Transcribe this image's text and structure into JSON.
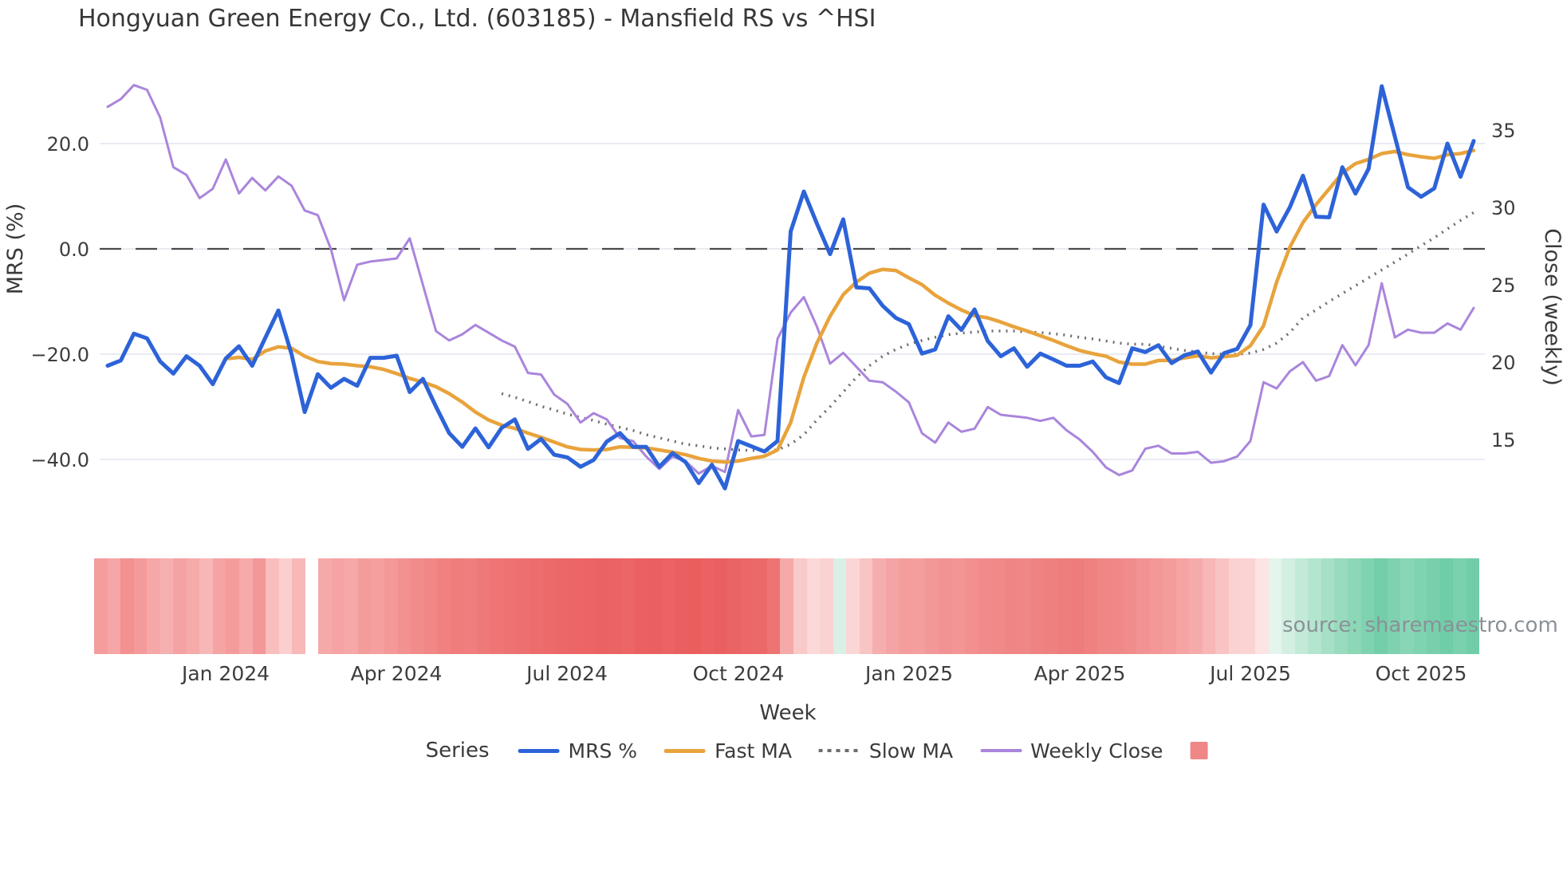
{
  "title": "Hongyuan Green Energy Co., Ltd. (603185) - Mansfield RS vs ^HSI",
  "source_note": "source: sharemaestro.com",
  "axes": {
    "left_label": "MRS (%)",
    "right_label": "Close (weekly)",
    "x_label": "Week",
    "left_ticks": [
      {
        "value": 20,
        "label": "20.0"
      },
      {
        "value": 0,
        "label": "0.0"
      },
      {
        "value": -20,
        "label": "−20.0"
      },
      {
        "value": -40,
        "label": "−40.0"
      }
    ],
    "right_ticks": [
      {
        "value": 35,
        "label": "35"
      },
      {
        "value": 30,
        "label": "30"
      },
      {
        "value": 25,
        "label": "25"
      },
      {
        "value": 20,
        "label": "20"
      },
      {
        "value": 15,
        "label": "15"
      }
    ],
    "x_ticks": [
      {
        "week": 9,
        "label": "Jan 2024"
      },
      {
        "week": 22,
        "label": "Apr 2024"
      },
      {
        "week": 35,
        "label": "Jul 2024"
      },
      {
        "week": 48,
        "label": "Oct 2024"
      },
      {
        "week": 61,
        "label": "Jan 2025"
      },
      {
        "week": 74,
        "label": "Apr 2025"
      },
      {
        "week": 87,
        "label": "Jul 2025"
      },
      {
        "week": 100,
        "label": "Oct 2025"
      }
    ]
  },
  "legend": {
    "title": "Series",
    "items": [
      {
        "label": "MRS %",
        "type": "line",
        "color": "#2d63d8"
      },
      {
        "label": "Fast MA",
        "type": "line",
        "color": "#e8a33c"
      },
      {
        "label": "Slow MA",
        "type": "dotted",
        "color": "#6d6d6d"
      },
      {
        "label": "Weekly Close",
        "type": "thin-line",
        "color": "#aa85dc"
      },
      {
        "label": "",
        "type": "square",
        "color": "#ef8787"
      }
    ]
  },
  "chart_data": {
    "type": "line",
    "title": "Hongyuan Green Energy Co., Ltd. (603185) - Mansfield RS vs ^HSI",
    "xlabel": "Week",
    "ylabel_left": "MRS (%)",
    "ylabel_right": "Close (weekly)",
    "x_unit": "week_index",
    "weeks": 105,
    "zero_line": true,
    "grid": "horizontal",
    "legend_position": "bottom",
    "series": [
      {
        "name": "MRS %",
        "axis": "left",
        "color": "#2d63d8",
        "style": "solid",
        "width": 5,
        "values": [
          -22.2,
          -21.2,
          -16.1,
          -17,
          -21.4,
          -23.7,
          -20.4,
          -22.2,
          -25.7,
          -20.8,
          -18.5,
          -22.2,
          -16.9,
          -11.7,
          -20,
          -31,
          -23.8,
          -26.4,
          -24.7,
          -26,
          -20.7,
          -20.7,
          -20.3,
          -27.2,
          -24.7,
          -30,
          -35,
          -37.6,
          -34.1,
          -37.7,
          -34,
          -32.4,
          -38,
          -36.1,
          -39.1,
          -39.6,
          -41.4,
          -40.1,
          -36.6,
          -35,
          -37.6,
          -37.6,
          -41.4,
          -38.8,
          -40.5,
          -44.5,
          -41,
          -45.5,
          -36.5,
          -37.5,
          -38.5,
          -36.5,
          3.3,
          10.9,
          4.8,
          -1,
          5.6,
          -7.3,
          -7.5,
          -10.8,
          -13.1,
          -14.3,
          -19.9,
          -19.1,
          -12.8,
          -15.4,
          -11.5,
          -17.5,
          -20.4,
          -18.9,
          -22.4,
          -19.9,
          -21,
          -22.2,
          -22.2,
          -21.4,
          -24.4,
          -25.5,
          -18.9,
          -19.6,
          -18.3,
          -21.7,
          -20.2,
          -19.5,
          -23.5,
          -19.8,
          -19,
          -14.5,
          8.4,
          3.3,
          7.9,
          13.9,
          6.1,
          6,
          15.5,
          10.5,
          15.2,
          30.9,
          21.3,
          11.7,
          9.9,
          11.5,
          20,
          13.7,
          20.5
        ]
      },
      {
        "name": "Fast MA",
        "axis": "left",
        "color": "#e8a33c",
        "style": "solid",
        "width": 4.5,
        "values": [
          null,
          null,
          null,
          null,
          null,
          null,
          null,
          null,
          null,
          -20.9,
          -20.6,
          -21,
          -19.4,
          -18.6,
          -18.9,
          -20.4,
          -21.4,
          -21.8,
          -21.9,
          -22.2,
          -22.4,
          -22.9,
          -23.7,
          -24.6,
          -25.3,
          -26.2,
          -27.5,
          -29.1,
          -31,
          -32.5,
          -33.5,
          -34.1,
          -35,
          -35.8,
          -36.7,
          -37.6,
          -38.1,
          -38.2,
          -38.1,
          -37.6,
          -37.7,
          -37.8,
          -38.2,
          -38.6,
          -39.1,
          -39.8,
          -40.3,
          -40.5,
          -40.3,
          -39.8,
          -39.4,
          -38.2,
          -33,
          -24.4,
          -17.9,
          -12.8,
          -8.7,
          -6.3,
          -4.6,
          -3.9,
          -4.1,
          -5.5,
          -6.8,
          -8.8,
          -10.3,
          -11.6,
          -12.7,
          -13.1,
          -13.9,
          -14.8,
          -15.6,
          -16.5,
          -17.4,
          -18.4,
          -19.3,
          -19.9,
          -20.4,
          -21.5,
          -21.9,
          -21.9,
          -21.2,
          -21.2,
          -20.7,
          -20.3,
          -20.7,
          -20.5,
          -20.2,
          -18.4,
          -14.6,
          -6.3,
          0.3,
          5,
          8.4,
          11.4,
          14.4,
          16.2,
          17,
          18.1,
          18.5,
          17.9,
          17.5,
          17.2,
          17.9,
          18.1,
          18.7
        ]
      },
      {
        "name": "Slow MA",
        "axis": "left",
        "color": "#6d6d6d",
        "style": "dotted",
        "width": 3.5,
        "values": [
          null,
          null,
          null,
          null,
          null,
          null,
          null,
          null,
          null,
          null,
          null,
          null,
          null,
          null,
          null,
          null,
          null,
          null,
          null,
          null,
          null,
          null,
          null,
          null,
          null,
          null,
          null,
          null,
          null,
          null,
          -27.5,
          -28.2,
          -29,
          -29.9,
          -30.6,
          -31.4,
          -32,
          -32.6,
          -33.3,
          -33.9,
          -34.5,
          -35.3,
          -35.9,
          -36.5,
          -37.1,
          -37.4,
          -37.8,
          -38,
          -38.2,
          -38.3,
          -38.3,
          -38.2,
          -37.1,
          -35.3,
          -32.5,
          -30,
          -27.2,
          -24.4,
          -22.2,
          -20.4,
          -19.1,
          -18.1,
          -17.4,
          -16.8,
          -16.3,
          -16,
          -15.8,
          -15.6,
          -15.6,
          -15.6,
          -15.8,
          -15.9,
          -16.1,
          -16.4,
          -16.8,
          -17.1,
          -17.5,
          -17.9,
          -18.1,
          -18.1,
          -18.5,
          -18.9,
          -19.3,
          -19.6,
          -19.9,
          -20,
          -20,
          -19.8,
          -19.1,
          -17.9,
          -15.9,
          -13.1,
          -11.6,
          -10,
          -8.5,
          -7,
          -5.5,
          -4,
          -2.5,
          -1,
          0.6,
          2.1,
          3.8,
          5.4,
          6.9
        ]
      },
      {
        "name": "Weekly Close",
        "axis": "right",
        "color": "#aa85dc",
        "style": "solid",
        "width": 3,
        "values": [
          36.5,
          37,
          37.9,
          37.6,
          35.8,
          32.6,
          32.1,
          30.6,
          31.2,
          33.1,
          30.9,
          31.9,
          31.1,
          32,
          31.4,
          29.8,
          29.5,
          27.3,
          24,
          26.3,
          26.5,
          26.6,
          26.7,
          28,
          25,
          22,
          21.4,
          21.8,
          22.4,
          21.9,
          21.4,
          21,
          19.3,
          19.2,
          17.9,
          17.3,
          16.1,
          16.7,
          16.3,
          15.1,
          14.9,
          13.9,
          13.1,
          13.9,
          13.6,
          12.8,
          13.3,
          12.9,
          16.9,
          15.2,
          15.3,
          21.5,
          23.2,
          24.2,
          22.3,
          19.9,
          20.6,
          19.7,
          18.8,
          18.7,
          18.1,
          17.4,
          15.4,
          14.8,
          16.1,
          15.5,
          15.7,
          17.1,
          16.6,
          16.5,
          16.4,
          16.2,
          16.4,
          15.6,
          15,
          14.2,
          13.2,
          12.7,
          13,
          14.4,
          14.6,
          14.1,
          14.1,
          14.2,
          13.5,
          13.6,
          13.9,
          14.9,
          18.7,
          18.3,
          19.4,
          20,
          18.8,
          19.1,
          21.1,
          19.8,
          21.1,
          25.1,
          21.6,
          22.1,
          21.9,
          21.9,
          22.5,
          22.1,
          23.5
        ]
      }
    ],
    "heatmap_strip": {
      "description": "weekly relative-strength heat cells below chart",
      "colors": [
        "#f59c9d",
        "#f6a6a7",
        "#f29190",
        "#f49a9a",
        "#f6a7a7",
        "#f7b0b0",
        "#f5a2a2",
        "#f6abab",
        "#f8b7b7",
        "#f5a3a3",
        "#f49c9c",
        "#f6aaaa",
        "#f39799",
        "#f9bebe",
        "#fbcfcf",
        "#f8b8b8",
        "#ffffff",
        "#f6a9a9",
        "#f5a3a3",
        "#f6a8a8",
        "#f49c9c",
        "#f5a0a0",
        "#f49898",
        "#f39191",
        "#f28b8b",
        "#f28787",
        "#f18181",
        "#f07c7c",
        "#f07e7e",
        "#ef7878",
        "#ef7575",
        "#ee7272",
        "#ee6f6f",
        "#ed6c6c",
        "#ed6a6a",
        "#ec6868",
        "#ec6666",
        "#ec6464",
        "#eb6262",
        "#eb6464",
        "#ec6666",
        "#eb6161",
        "#ea5f5f",
        "#eb6363",
        "#ea6060",
        "#ea5e5e",
        "#eb6262",
        "#ea5f5f",
        "#eb6464",
        "#ec6767",
        "#ec6969",
        "#ee7373",
        "#f5a9a9",
        "#f9caca",
        "#fbd9d9",
        "#fad2d2",
        "#d8f0e6",
        "#fbd6d6",
        "#f8c4c4",
        "#f5aeae",
        "#f4a4a4",
        "#f39d9d",
        "#f49f9f",
        "#f39898",
        "#f29292",
        "#f39595",
        "#f29090",
        "#f18b8b",
        "#f18989",
        "#f08585",
        "#f08787",
        "#ef8383",
        "#ef8080",
        "#ee7e7e",
        "#ee7c7c",
        "#ef8181",
        "#f08686",
        "#f08888",
        "#f18c8c",
        "#f29292",
        "#f39797",
        "#f49c9c",
        "#f5a3a3",
        "#f6abab",
        "#f8b6b6",
        "#f9c3c3",
        "#fbd2d2",
        "#fbd3d3",
        "#fce4e4",
        "#e3f5ec",
        "#d3efe2",
        "#c3ead8",
        "#b4e5cf",
        "#a6e0c6",
        "#98dbbe",
        "#8bd7b6",
        "#80d3b0",
        "#74cea9",
        "#7ed2af",
        "#89d6b6",
        "#7fd3b0",
        "#77d0ab",
        "#6fcda7",
        "#79d1ad",
        "#70cda8"
      ]
    },
    "colors": {
      "grid": "#e8ebf1",
      "zero_line": "#4a4a4a",
      "tick_text": "#3d3d3d"
    }
  }
}
